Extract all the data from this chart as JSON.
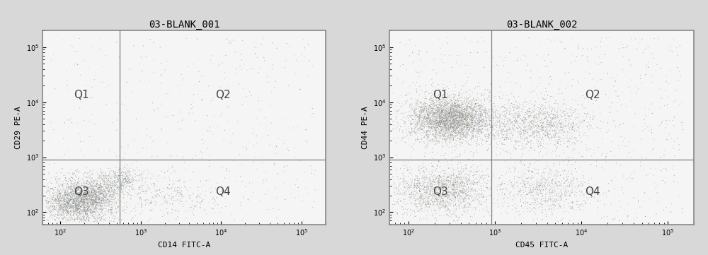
{
  "plot1": {
    "title": "03-BLANK_001",
    "xlabel": "CD14 FITC-A",
    "ylabel": "CD29 PE-A",
    "xlim": [
      60,
      200000
    ],
    "ylim": [
      60,
      200000
    ],
    "gate_x": 550,
    "gate_y": 900,
    "n_points": 4000
  },
  "plot2": {
    "title": "03-BLANK_002",
    "xlabel": "CD45 FITC-A",
    "ylabel": "CD44 PE-A",
    "xlim": [
      60,
      200000
    ],
    "ylim": [
      60,
      200000
    ],
    "gate_x": 900,
    "gate_y": 900,
    "n_points": 8000
  },
  "fig_bg": "#d8d8d8",
  "plot_bg": "#f5f5f5",
  "dot_colors": [
    "#888888",
    "#aaaaaa",
    "#666666",
    "#999999",
    "#bbbbbb"
  ],
  "gate_color": "#808080",
  "border_color": "#888888",
  "title_fontsize": 10,
  "label_fontsize": 8,
  "quad_fontsize": 11,
  "tick_fontsize": 7
}
